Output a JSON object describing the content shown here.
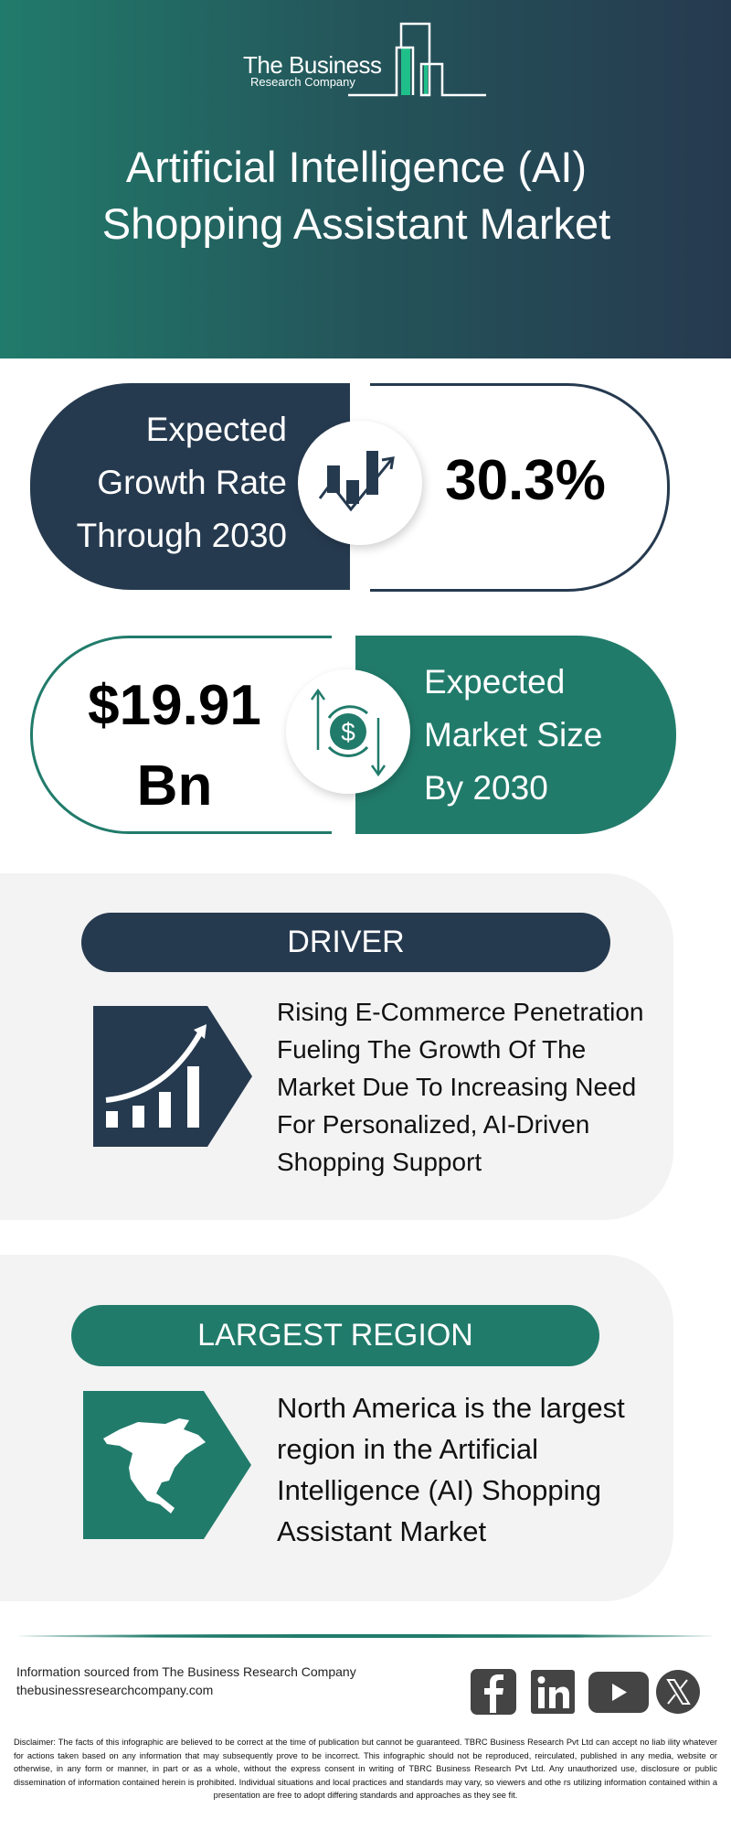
{
  "brand": {
    "name_line1": "The Business",
    "name_line2": "Research Company"
  },
  "header": {
    "title_line1": "Artificial Intelligence (AI)",
    "title_line2": "Shopping Assistant Market"
  },
  "growth": {
    "label_lines": [
      "Expected",
      "Growth Rate",
      "Through 2030"
    ],
    "value": "30.3%",
    "icon": "growth-chart-icon"
  },
  "market_size": {
    "value_line1": "$19.91",
    "value_line2": "Bn",
    "label_lines": [
      "Expected",
      "Market Size",
      "By 2030"
    ],
    "icon": "dollar-cycle-icon"
  },
  "driver": {
    "heading": "DRIVER",
    "icon": "rising-bar-chart-icon",
    "text_lines": [
      "Rising E-Commerce Penetration",
      "Fueling The Growth Of The",
      "Market Due To Increasing Need",
      "For Personalized, AI-Driven",
      "Shopping Support"
    ]
  },
  "region": {
    "heading": "LARGEST REGION",
    "icon": "north-america-map-icon",
    "text_lines": [
      "North America is the largest",
      "region in the Artificial",
      "Intelligence (AI) Shopping",
      "Assistant Market"
    ]
  },
  "footer": {
    "source": "Information sourced from The Business Research Company",
    "website": "thebusinessresearchcompany.com",
    "social": [
      "facebook-icon",
      "linkedin-icon",
      "youtube-icon",
      "x-icon"
    ],
    "disclaimer": "Disclaimer: The facts of this infographic are believed to be correct at the time of publication but cannot be guaranteed. TBRC Business Research Pvt Ltd can accept no liab ility whatever for actions taken based on any information that may subsequently prove to be incorrect. This infographic should not be reproduced, reirculated, published in any media, website or otherwise, in any form or manner, in part or as a whole, without the express consent in writing of TBRC Business Research Pvt Ltd. Any unauthorized use, disclosure or public dissemination of information contained herein is prohibited. Individual situations and local practices and standards may vary, so viewers and othe rs utilizing information contained within a presentation are free to adopt differing standards and approaches as they see fit."
  },
  "colors": {
    "dark": "#263a4f",
    "teal": "#217b6b",
    "panel": "#f3f3f3",
    "logo_accent": "#1fbf8a"
  }
}
